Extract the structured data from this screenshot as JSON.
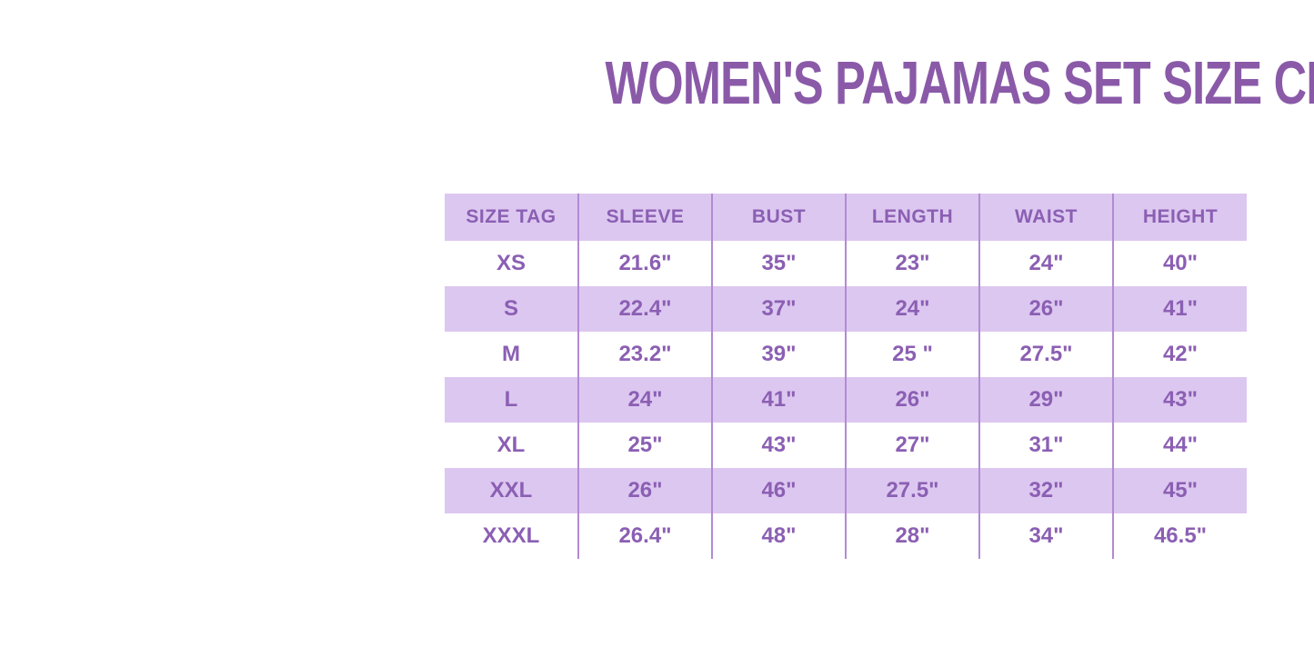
{
  "title": "WOMEN'S PAJAMAS SET SIZE CHART",
  "colors": {
    "title_text": "#8a5aa8",
    "table_text": "#8b5fb3",
    "row_fill": "#dcc7f0",
    "divider": "#b28bd3",
    "background": "#ffffff"
  },
  "chart_data": {
    "type": "table",
    "title": "WOMEN'S PAJAMAS SET SIZE CHART",
    "columns": [
      "SIZE TAG",
      "SLEEVE",
      "BUST",
      "LENGTH",
      "WAIST",
      "HEIGHT"
    ],
    "rows": [
      [
        "XS",
        "21.6\"",
        "35\"",
        "23\"",
        "24\"",
        "40\""
      ],
      [
        "S",
        "22.4\"",
        "37\"",
        "24\"",
        "26\"",
        "41\""
      ],
      [
        "M",
        "23.2\"",
        "39\"",
        "25 \"",
        "27.5\"",
        "42\""
      ],
      [
        "L",
        "24\"",
        "41\"",
        "26\"",
        "29\"",
        "43\""
      ],
      [
        "XL",
        "25\"",
        "43\"",
        "27\"",
        "31\"",
        "44\""
      ],
      [
        "XXL",
        "26\"",
        "46\"",
        "27.5\"",
        "32\"",
        "45\""
      ],
      [
        "XXXL",
        "26.4\"",
        "48\"",
        "28\"",
        "34\"",
        "46.5\""
      ]
    ],
    "layout": {
      "stripe_pattern": "header lavender, then alternating white/lavender starting white at XS",
      "grid": "vertical dividers only"
    }
  }
}
